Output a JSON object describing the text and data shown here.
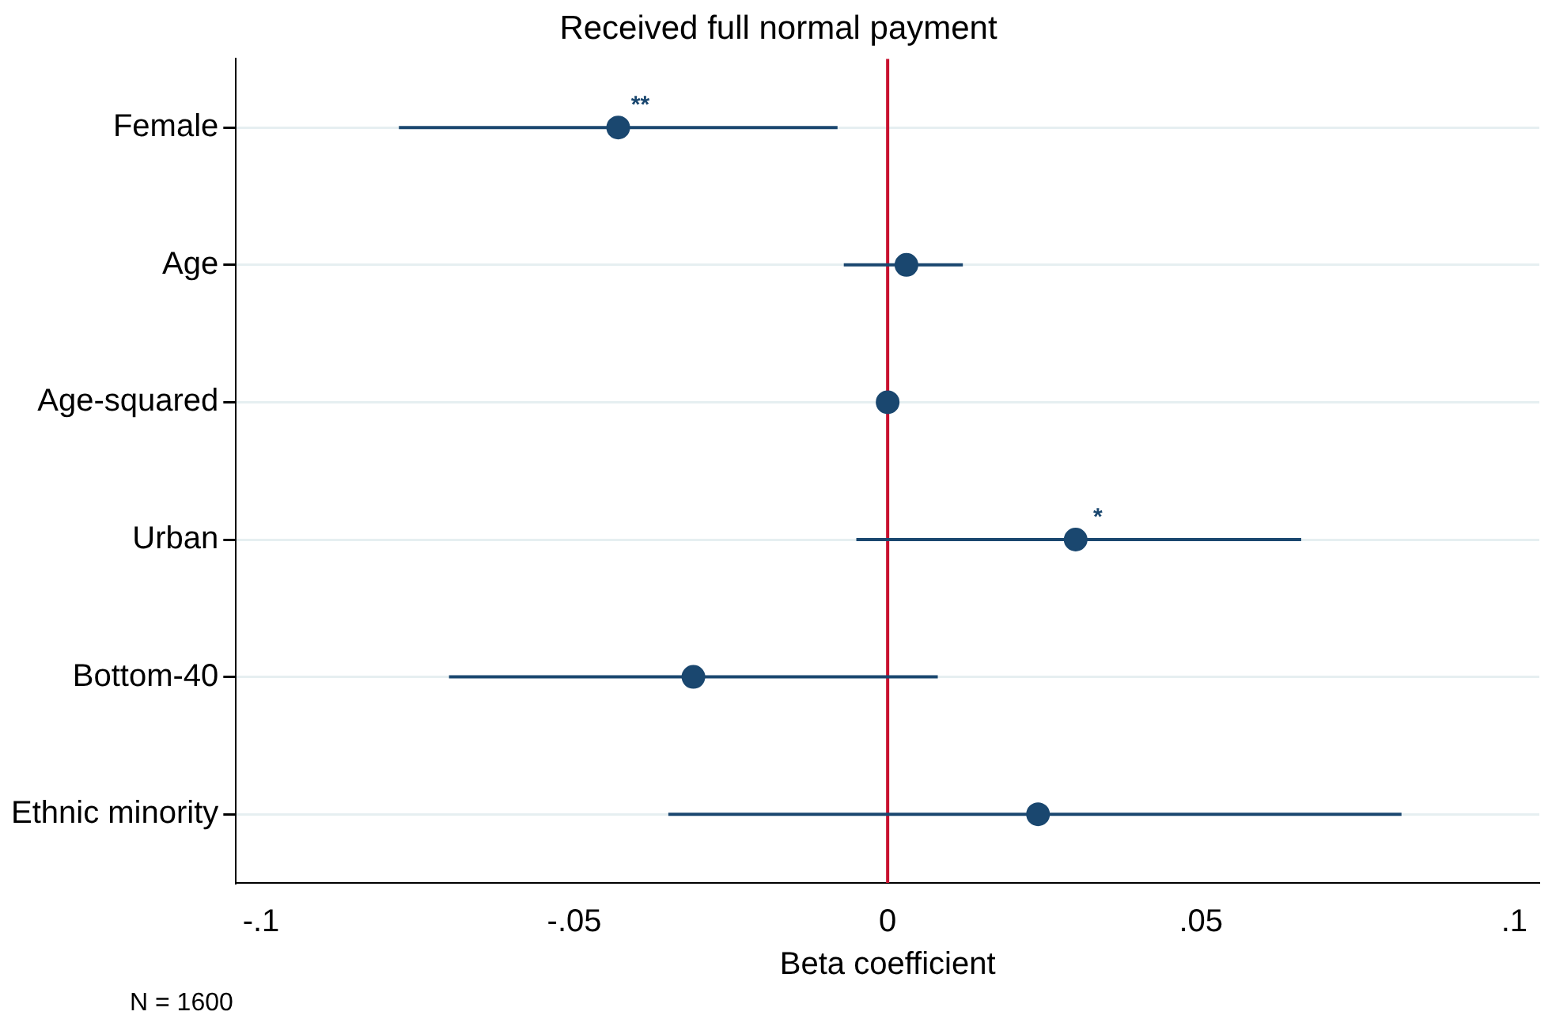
{
  "chart_data": {
    "type": "scatter",
    "orientation": "horizontal",
    "title": "Received full normal payment",
    "xlabel": "Beta coefficient",
    "categories": [
      "Female",
      "Age",
      "Age-squared",
      "Urban",
      "Bottom-40",
      "Ethnic minority"
    ],
    "values": [
      -0.043,
      0.003,
      0.0,
      0.03,
      -0.031,
      0.024
    ],
    "errors": [
      [
        -0.078,
        -0.008
      ],
      [
        -0.007,
        0.012
      ],
      null,
      [
        -0.005,
        0.066
      ],
      [
        -0.07,
        0.008
      ],
      [
        -0.035,
        0.082
      ]
    ],
    "color": "#1a476f",
    "marker": "circle",
    "xlim": [
      -0.104,
      0.104
    ],
    "xticks": [
      {
        "value": -0.1,
        "label": "-.1"
      },
      {
        "value": -0.05,
        "label": "-.05"
      },
      {
        "value": 0,
        "label": "0"
      },
      {
        "value": 0.05,
        "label": ".05"
      },
      {
        "value": 0.1,
        "label": ".1"
      }
    ],
    "ref_lines": [
      {
        "axis": "x",
        "value": 0,
        "color": "#c8102e"
      }
    ],
    "grid": "y",
    "legend": false,
    "annotations": [
      {
        "text": "**",
        "x": -0.043,
        "y": "Female"
      },
      {
        "text": "*",
        "x": 0.03,
        "y": "Urban"
      },
      "N = 1600"
    ]
  }
}
